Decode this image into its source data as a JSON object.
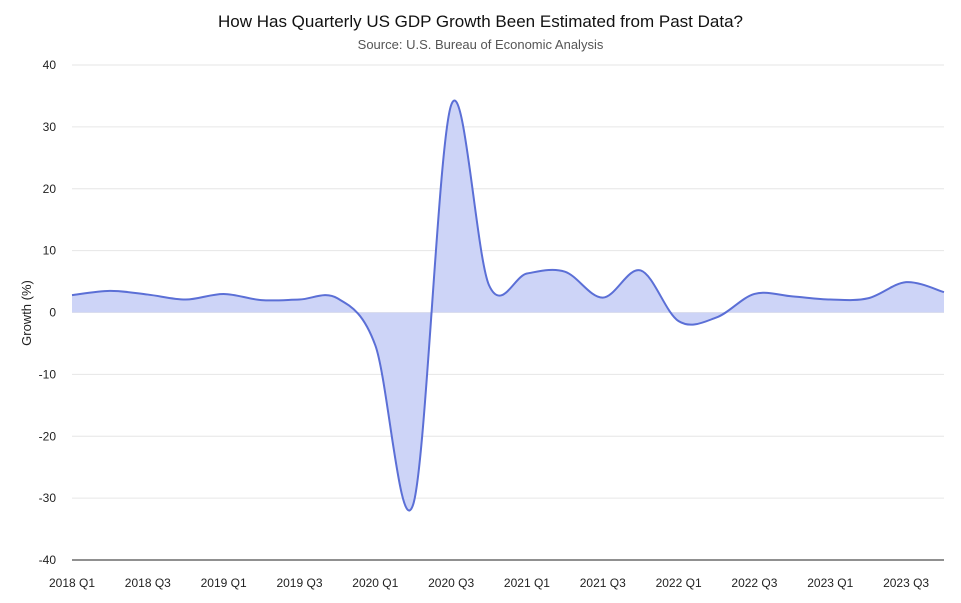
{
  "chart_data": {
    "type": "area",
    "title": "How Has Quarterly US GDP Growth Been Estimated from Past Data?",
    "subtitle": "Source: U.S. Bureau of Economic Analysis",
    "ylabel": "Growth (%)",
    "xlabel": "",
    "ylim": [
      -40,
      40
    ],
    "yticks": [
      40,
      30,
      20,
      10,
      0,
      -10,
      -20,
      -30,
      -40
    ],
    "grid": true,
    "x": [
      "2018 Q1",
      "2018 Q2",
      "2018 Q3",
      "2018 Q4",
      "2019 Q1",
      "2019 Q2",
      "2019 Q3",
      "2019 Q4",
      "2020 Q1",
      "2020 Q2",
      "2020 Q3",
      "2020 Q4",
      "2021 Q1",
      "2021 Q2",
      "2021 Q3",
      "2021 Q4",
      "2022 Q1",
      "2022 Q2",
      "2022 Q3",
      "2022 Q4",
      "2023 Q1",
      "2023 Q2",
      "2023 Q3",
      "2023 Q4"
    ],
    "xtick_labels": [
      "2018 Q1",
      "2018 Q3",
      "2019 Q1",
      "2019 Q3",
      "2020 Q1",
      "2020 Q3",
      "2021 Q1",
      "2021 Q3",
      "2022 Q1",
      "2022 Q3",
      "2023 Q1",
      "2023 Q3"
    ],
    "series": [
      {
        "values": [
          2.8,
          3.5,
          2.9,
          2.1,
          3.0,
          2.0,
          2.1,
          2.3,
          -5.3,
          -31.0,
          33.5,
          4.4,
          6.3,
          6.6,
          2.4,
          6.8,
          -1.4,
          -0.8,
          3.0,
          2.6,
          2.1,
          2.3,
          4.9,
          3.3
        ],
        "color": "#5b6fd6",
        "fill": "#cdd4f7"
      }
    ]
  }
}
